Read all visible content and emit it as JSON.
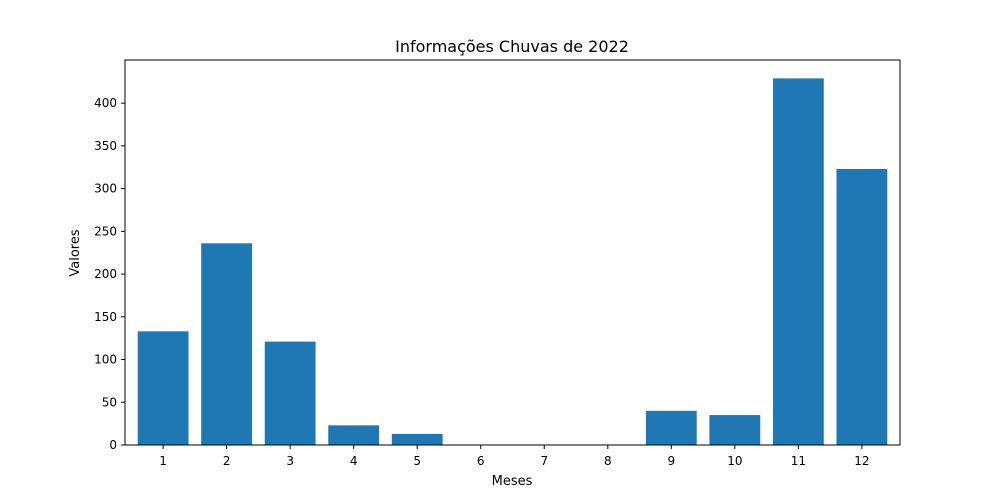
{
  "chart_data": {
    "type": "bar",
    "title": "Informações Chuvas de 2022",
    "xlabel": "Meses",
    "ylabel": "Valores",
    "categories": [
      "1",
      "2",
      "3",
      "4",
      "5",
      "6",
      "7",
      "8",
      "9",
      "10",
      "11",
      "12"
    ],
    "values": [
      133,
      236,
      121,
      23,
      13,
      0,
      0,
      0,
      40,
      35,
      429,
      323
    ],
    "yticks": [
      0,
      50,
      100,
      150,
      200,
      250,
      300,
      350,
      400
    ],
    "ylim": [
      0,
      450.5
    ],
    "grid": false,
    "bar_color": "#1f77b4"
  }
}
